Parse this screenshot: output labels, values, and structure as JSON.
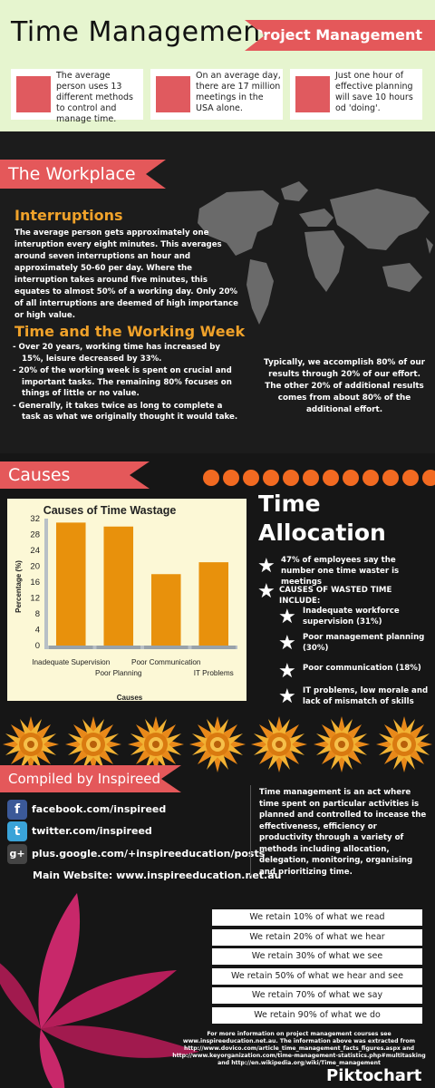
{
  "header": {
    "title": "Time Management",
    "ribbon": "Project Management",
    "facts": [
      "The average person uses 13 different methods to control and manage time.",
      "On an average day, there are 17 million meetings in the USA alone.",
      "Just one hour of effective planning will save 10 hours od 'doing'."
    ]
  },
  "workplace": {
    "ribbon": "The Workplace",
    "interruptions_heading": "Interruptions",
    "interruptions_text": "The average person gets approximately one interuption every eight minutes. This averages around seven interruptions an hour and approximately 50-60 per day. Where the interruption takes around five minutes, this equates to almost 50% of a working day. Only 20% of all interruptions are deemed of high importance or high value.",
    "week_heading": "Time and the Working Week",
    "week_items": [
      "- Over 20 years, working time has increased by 15%, leisure decreased by 33%.",
      "- 20% of the working week is spent on crucial and important tasks. The remaining 80% focuses on things of little or no value.",
      "- Generally, it takes twice as long to complete a task as what we originally thought it would take."
    ],
    "pareto": "Typically, we accomplish 80% of our results through 20% of our effort. The other 20% of additional results comes from about 80% of the additional effort."
  },
  "causes": {
    "ribbon": "Causes"
  },
  "chart_data": {
    "type": "bar",
    "title": "Causes of Time Wastage",
    "xlabel": "Causes",
    "ylabel": "Percentage (%)",
    "categories": [
      "Inadequate Supervision",
      "Poor Planning",
      "Poor Communication",
      "IT Problems"
    ],
    "values": [
      31,
      30,
      18,
      21
    ],
    "ylim": [
      0,
      32
    ],
    "yticks": [
      0,
      4,
      8,
      12,
      16,
      20,
      24,
      28,
      32
    ],
    "bar_color": "#e8910c",
    "grid": false,
    "legend": "none"
  },
  "allocation": {
    "title_line1": "Time",
    "title_line2": "Allocation",
    "items": [
      "47% of employees say the number one time waster is meetings",
      "CAUSES OF WASTED TIME INCLUDE:"
    ],
    "sub_items": [
      "Inadequate workforce supervision (31%)",
      "Poor management planning (30%)",
      "Poor communication (18%)",
      "IT problems, low morale and lack of mismatch of skills"
    ]
  },
  "compiled": {
    "ribbon": "Compiled by Inspireed",
    "links": [
      {
        "icon": "facebook-icon",
        "glyph": "f",
        "color": "#3b5998",
        "text": "facebook.com/inspireed"
      },
      {
        "icon": "twitter-icon",
        "glyph": "t",
        "color": "#3aa3d8",
        "text": "twitter.com/inspireed"
      },
      {
        "icon": "google-plus-icon",
        "glyph": "g+",
        "color": "#444444",
        "text": "plus.google.com/+inspireeducation/posts"
      }
    ],
    "website": "Main Website: www.inspireeducation.net.au",
    "definition": "Time management is an act where time spent on particular activities is planned and controlled to incease the effectiveness, efficiency or productivity through a variety of methods including allocation, delegation, monitoring, organising and prioritizing time."
  },
  "retention": [
    "We retain 10% of what we read",
    "We retain 20% of what we hear",
    "We retain 30% of what we see",
    "We retain 50% of what we hear and see",
    "We retain 70% of what we say",
    "We retain 90% of what we do"
  ],
  "footer": {
    "note": "For more information on project management courses see www.inspireeducation.net.au. The information above was extracted from http://www.dovico.com/article_time_management_facts_figures.aspx and http://www.keyorganization.com/time-management-statistics.php#multitasking and http://en.wikipedia.org/wiki/Time_management",
    "brand": "Piktochart"
  },
  "colors": {
    "accent": "#e4585a",
    "orange": "#f0a22a",
    "header_bg": "#e6f5cf",
    "dark_bg": "#161616"
  }
}
